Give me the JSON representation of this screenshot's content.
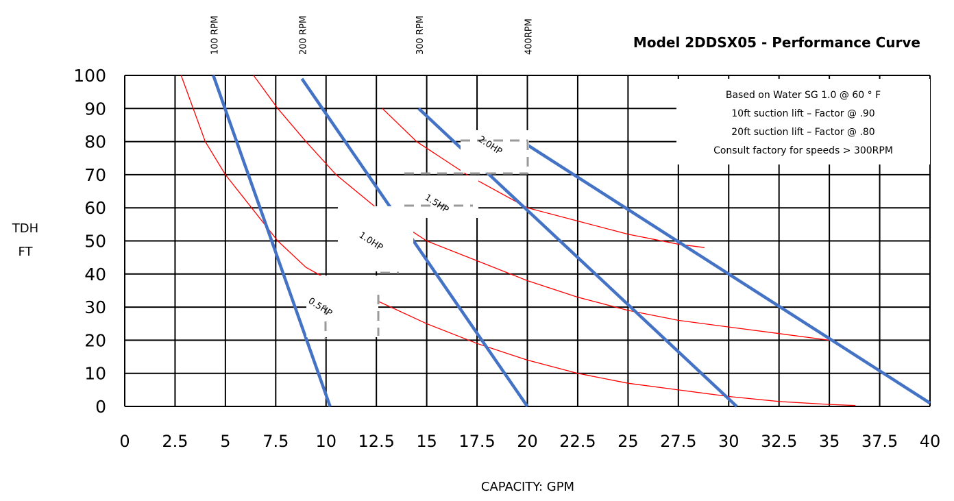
{
  "chart_data": {
    "type": "line",
    "title": "Model 2DDSX05 - Performance Curve",
    "xlabel": "CAPACITY: GPM",
    "ylabel_lines": [
      "TDH",
      "FT"
    ],
    "xlim": [
      0,
      40
    ],
    "ylim": [
      0,
      100
    ],
    "x_ticks": [
      "0",
      "2.5",
      "5",
      "7.5",
      "10",
      "12.5",
      "15",
      "17.5",
      "20",
      "22.5",
      "25",
      "27.5",
      "30",
      "32.5",
      "35",
      "37.5",
      "40"
    ],
    "y_ticks": [
      "0",
      "10",
      "20",
      "30",
      "40",
      "50",
      "60",
      "70",
      "80",
      "90",
      "100"
    ],
    "grid": true,
    "notes": [
      "Based on Water SG 1.0 @ 60 ° F",
      "10ft suction lift – Factor @ .90",
      "20ft suction lift – Factor @ .80",
      "Consult factory for speeds > 300RPM"
    ],
    "speed_series": [
      {
        "name": "100 RPM",
        "color": "#4472c4",
        "points": [
          [
            4.4,
            100
          ],
          [
            10.2,
            0
          ]
        ]
      },
      {
        "name": "200 RPM",
        "color": "#4472c4",
        "points": [
          [
            8.8,
            99
          ],
          [
            20,
            0
          ]
        ]
      },
      {
        "name": "300 RPM",
        "color": "#4472c4",
        "points": [
          [
            14.6,
            90
          ],
          [
            30.4,
            0
          ]
        ]
      },
      {
        "name": "400RPM",
        "color": "#4472c4",
        "points": [
          [
            20,
            79
          ],
          [
            40,
            1
          ]
        ]
      }
    ],
    "power_series": [
      {
        "name": "0.5HP",
        "color": "#ff0000",
        "points": [
          [
            2.8,
            100
          ],
          [
            4,
            80
          ],
          [
            5,
            70
          ],
          [
            6.3,
            60
          ],
          [
            7.6,
            50
          ],
          [
            9,
            42
          ],
          [
            10.2,
            38
          ],
          [
            12.5,
            32
          ],
          [
            15,
            25
          ],
          [
            17.5,
            19
          ],
          [
            20,
            14
          ],
          [
            22.5,
            10
          ],
          [
            25,
            7
          ],
          [
            27.5,
            5
          ],
          [
            30,
            3
          ],
          [
            32.5,
            1.5
          ],
          [
            35,
            0.6
          ],
          [
            36.3,
            0.3
          ]
        ]
      },
      {
        "name": "1.0HP",
        "color": "#ff0000",
        "points": [
          [
            6.4,
            100
          ],
          [
            7.6,
            90
          ],
          [
            9,
            80
          ],
          [
            10.5,
            70
          ],
          [
            12.5,
            60
          ],
          [
            15,
            50
          ],
          [
            17.5,
            44
          ],
          [
            20,
            38
          ],
          [
            22.5,
            33
          ],
          [
            25,
            29
          ],
          [
            27.5,
            26
          ],
          [
            30,
            24
          ],
          [
            32.5,
            22
          ],
          [
            35,
            20
          ]
        ]
      },
      {
        "name": "1.5HP",
        "color": "#ff0000",
        "points": [
          [
            12.8,
            90
          ],
          [
            14.5,
            80
          ],
          [
            17,
            70
          ],
          [
            20,
            60
          ],
          [
            22.5,
            56
          ],
          [
            25,
            52
          ],
          [
            27.5,
            49
          ],
          [
            28.8,
            48
          ]
        ]
      }
    ],
    "series_labels": [
      "0.5HP",
      "1.0HP",
      "1.5HP",
      "2.0HP"
    ]
  }
}
